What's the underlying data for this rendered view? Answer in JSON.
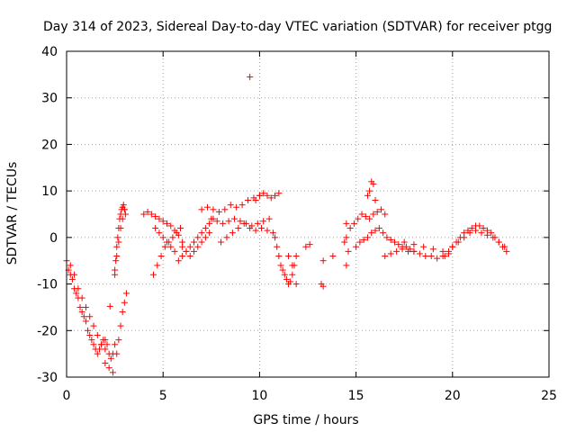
{
  "chart_data": {
    "type": "scatter",
    "title": "Day 314 of 2023, Sidereal Day-to-day VTEC variation (SDTVAR) for receiver ptgg",
    "xlabel": "GPS time / hours",
    "ylabel": "SDTVAR / TECUs",
    "xlim": [
      0,
      25
    ],
    "ylim": [
      -30,
      40
    ],
    "xticks": [
      0,
      5,
      10,
      15,
      20,
      25
    ],
    "yticks": [
      -30,
      -20,
      -10,
      0,
      10,
      20,
      30,
      40
    ],
    "xtick_labels": [
      "0",
      "5",
      "10",
      "15",
      "20",
      "25"
    ],
    "ytick_labels": [
      "-30",
      "-20",
      "-10",
      "0",
      "10",
      "20",
      "30",
      "40"
    ],
    "grid": true,
    "marker": "+",
    "color": "#ff0000",
    "series": [
      {
        "name": "SDTVAR",
        "x": [
          0.0,
          0.1,
          0.2,
          0.3,
          0.4,
          0.5,
          0.6,
          0.7,
          0.8,
          0.9,
          1.0,
          1.1,
          1.2,
          1.3,
          1.4,
          1.5,
          1.6,
          1.7,
          1.8,
          1.9,
          2.0,
          2.1,
          2.2,
          2.3,
          2.4,
          2.5,
          0.2,
          0.4,
          0.6,
          0.8,
          1.0,
          1.2,
          1.4,
          1.6,
          1.8,
          2.0,
          2.0,
          2.2,
          2.4,
          2.25,
          2.5,
          2.55,
          2.6,
          2.65,
          2.7,
          2.75,
          2.8,
          2.85,
          2.9,
          2.95,
          3.0,
          3.05,
          2.6,
          2.7,
          2.8,
          2.9,
          3.0,
          3.1,
          2.5,
          2.6,
          2.7,
          2.8,
          2.9,
          3.0,
          4.0,
          4.2,
          4.4,
          4.6,
          4.8,
          5.0,
          5.2,
          5.4,
          5.6,
          5.8,
          6.0,
          4.5,
          4.7,
          4.9,
          5.1,
          5.3,
          5.5,
          5.7,
          5.9,
          4.6,
          4.8,
          5.0,
          5.2,
          5.4,
          5.6,
          5.8,
          6.0,
          6.2,
          6.4,
          6.6,
          6.8,
          7.0,
          7.2,
          7.4,
          7.6,
          6.0,
          6.2,
          6.4,
          6.6,
          6.8,
          7.0,
          7.2,
          7.4,
          7.0,
          7.3,
          7.6,
          7.9,
          8.2,
          8.5,
          8.8,
          9.1,
          9.4,
          9.7,
          10.0,
          7.5,
          7.8,
          8.1,
          8.4,
          8.7,
          9.0,
          9.3,
          9.6,
          9.9,
          10.2,
          10.5,
          8.0,
          8.3,
          8.6,
          8.9,
          9.2,
          9.5,
          9.8,
          10.1,
          10.4,
          10.7,
          9.8,
          10.0,
          10.2,
          10.4,
          10.6,
          10.8,
          11.0,
          10.8,
          10.9,
          11.0,
          11.1,
          11.2,
          11.3,
          11.4,
          11.5,
          11.6,
          11.7,
          11.8,
          11.9,
          11.5,
          11.7,
          11.9,
          12.4,
          12.6,
          9.5,
          13.2,
          13.3,
          13.3,
          13.8,
          14.4,
          14.5,
          14.6,
          14.5,
          14.5,
          14.7,
          14.9,
          15.1,
          15.3,
          15.5,
          15.7,
          15.9,
          16.1,
          16.3,
          16.5,
          15.6,
          15.7,
          15.8,
          15.9,
          16.0,
          15.0,
          15.2,
          15.4,
          15.6,
          15.8,
          16.0,
          16.2,
          16.4,
          16.6,
          16.8,
          17.0,
          17.2,
          17.4,
          17.6,
          17.8,
          18.0,
          16.5,
          16.8,
          17.1,
          17.4,
          17.7,
          18.0,
          18.3,
          18.6,
          18.9,
          19.2,
          19.5,
          19.8,
          17.5,
          18.0,
          18.5,
          19.0,
          19.5,
          19.6,
          19.8,
          20.0,
          20.2,
          20.4,
          20.6,
          20.8,
          21.0,
          21.2,
          21.4,
          21.6,
          21.8,
          22.0,
          22.2,
          22.4,
          22.6,
          22.8,
          20.0,
          20.3,
          20.6,
          20.9,
          21.2,
          21.5,
          21.8,
          22.1,
          22.4,
          22.7
        ],
        "y": [
          -5,
          -7,
          -8,
          -9,
          -11,
          -12,
          -13,
          -15,
          -16,
          -17,
          -18,
          -20,
          -21,
          -22,
          -23,
          -24,
          -25,
          -24,
          -23,
          -22,
          -22,
          -23,
          -25,
          -26,
          -25,
          -23,
          -6,
          -8,
          -11,
          -13,
          -15,
          -17,
          -19,
          -21,
          -23,
          -24,
          -27,
          -28,
          -29,
          -14.8,
          -8,
          -5,
          -2,
          0,
          2,
          4,
          5,
          6,
          6.5,
          7,
          6,
          5,
          -25,
          -22,
          -19,
          -16,
          -14,
          -12,
          -7,
          -4,
          -1,
          2,
          4,
          6,
          5,
          5.5,
          5,
          4.5,
          4,
          3.5,
          3,
          2.5,
          1.5,
          0.5,
          -1,
          -8,
          -6,
          -4,
          -2,
          -1,
          0,
          1,
          2,
          2,
          1,
          0,
          -1,
          -2,
          -3,
          -5,
          -4,
          -3,
          -2,
          -1,
          0,
          1,
          2,
          3,
          4,
          -2,
          -3,
          -4,
          -3,
          -2,
          -1,
          0,
          1,
          6,
          6.5,
          6,
          5.5,
          6,
          7,
          6.5,
          7,
          8,
          8.5,
          9,
          4,
          3.5,
          3,
          3.5,
          4,
          3.5,
          3,
          2.5,
          3,
          3.5,
          4,
          -1,
          0,
          1,
          2,
          3,
          2,
          1.5,
          2,
          1.5,
          1,
          8,
          9,
          9.5,
          9,
          8.5,
          9,
          9.5,
          0,
          -2,
          -4,
          -6,
          -7,
          -8,
          -9,
          -10,
          -9.5,
          -8,
          -6,
          -4,
          -4,
          -6,
          -10,
          -2,
          -1.5,
          34.5,
          -10,
          -5,
          -10.5,
          -4,
          -1,
          -6,
          -3,
          0,
          3,
          2,
          3,
          4,
          5,
          4.5,
          4,
          5,
          5.5,
          6,
          5,
          9,
          10,
          12,
          11.5,
          8,
          -2,
          -1,
          -0.5,
          0,
          1,
          1.5,
          2,
          1,
          0,
          -0.5,
          -1,
          -1.5,
          -2,
          -2,
          -2.5,
          -3,
          -4,
          -3.5,
          -3,
          -2.5,
          -3,
          -3,
          -3.5,
          -4,
          -4,
          -4.5,
          -4,
          -3.5,
          -1,
          -1.5,
          -2,
          -2.5,
          -3,
          -4,
          -3,
          -2,
          -1,
          0,
          1,
          1.5,
          2,
          2.5,
          2.5,
          2,
          1.5,
          1,
          0,
          -1,
          -2,
          -3,
          -2,
          -1,
          0,
          1,
          1.5,
          1,
          0.5,
          0,
          -1,
          -2
        ]
      }
    ]
  }
}
